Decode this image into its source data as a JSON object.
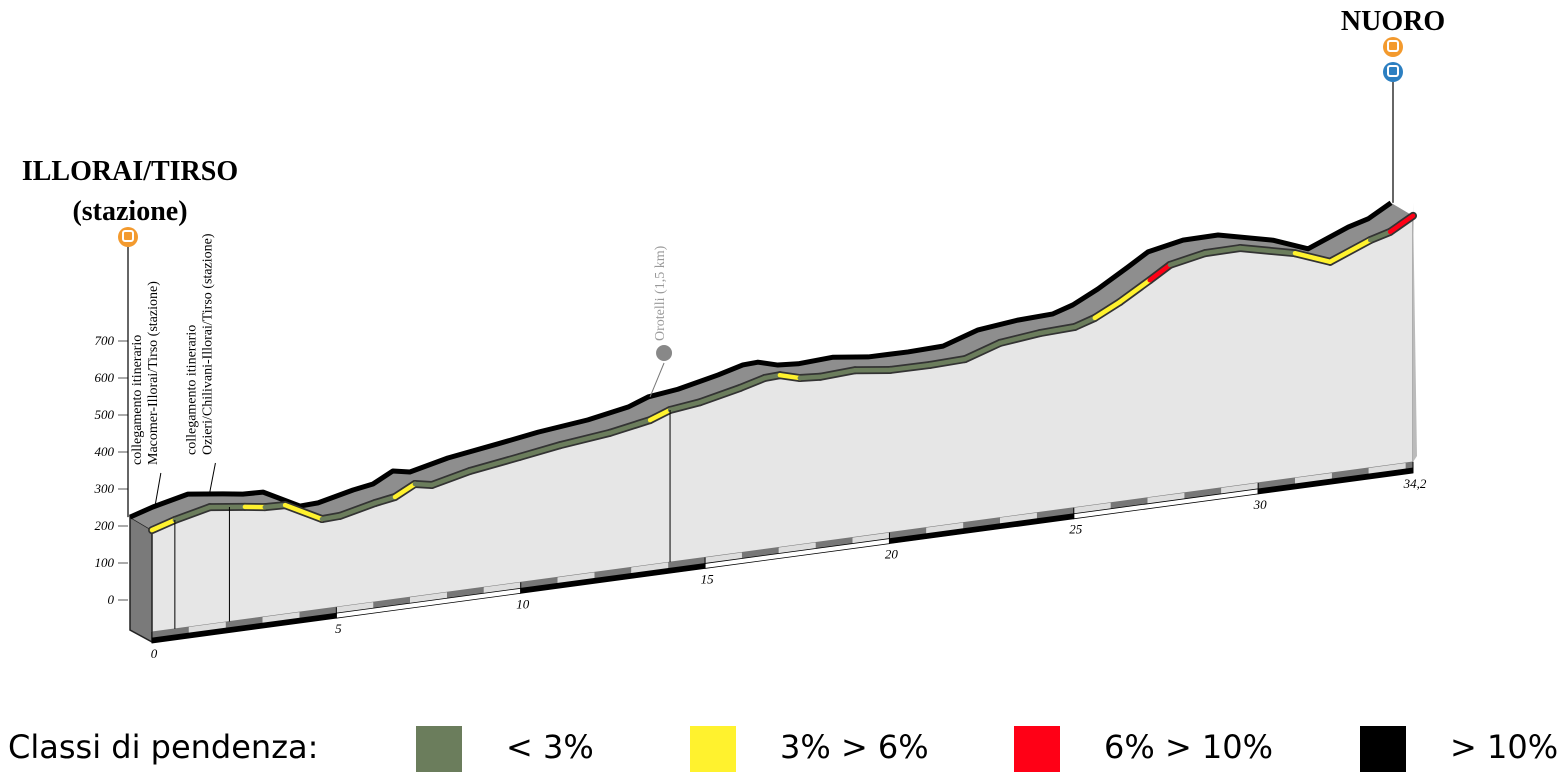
{
  "chart_data": {
    "type": "elevation-profile",
    "x": [
      0,
      0.62,
      1.57,
      2.52,
      3.06,
      3.61,
      4.61,
      5.1,
      6.05,
      6.59,
      7.13,
      7.59,
      8.62,
      9.98,
      11.07,
      12.42,
      13.51,
      14.05,
      14.86,
      15.95,
      16.62,
      17.03,
      17.57,
      18.12,
      19.07,
      20.02,
      21.1,
      22.05,
      23,
      24.08,
      25.03,
      25.57,
      26.25,
      27.06,
      27.61,
      28.56,
      29.51,
      31,
      31.95,
      33.04,
      33.58,
      34.2
    ],
    "values": [
      224,
      243,
      265,
      253,
      245,
      243,
      192,
      194,
      216,
      225,
      253,
      244,
      268,
      288,
      305,
      320,
      340,
      360,
      370,
      394,
      412,
      414,
      399,
      395,
      400,
      388,
      387,
      390,
      421,
      433,
      437,
      454,
      488,
      536,
      570,
      589,
      590,
      556,
      520,
      564,
      579,
      614
    ],
    "segment_class": [
      1,
      0,
      0,
      1,
      0,
      1,
      0,
      0,
      0,
      1,
      0,
      0,
      0,
      0,
      0,
      0,
      1,
      0,
      0,
      0,
      0,
      1,
      0,
      0,
      0,
      0,
      0,
      0,
      0,
      0,
      0,
      1,
      1,
      2,
      0,
      0,
      0,
      1,
      1,
      0,
      2
    ],
    "classes": [
      {
        "label": "< 3%",
        "color": "#6b7d5c"
      },
      {
        "label": "3% > 6%",
        "color": "#fff22e"
      },
      {
        "label": "6% > 10%",
        "color": "#ff0016"
      },
      {
        "label": "> 10%",
        "color": "#000000"
      }
    ],
    "legend_title": "Classi di pendenza:",
    "xlim": [
      0,
      34.2
    ],
    "xticks": [
      0,
      5,
      10,
      15,
      20,
      25,
      30,
      {
        "value": 34.2,
        "label": "34,2"
      }
    ],
    "ylim": [
      0,
      700
    ],
    "yticks": [
      0,
      100,
      200,
      300,
      400,
      500,
      600,
      700
    ],
    "annotations": [
      {
        "kind": "endpoint",
        "x": 0,
        "lines": [
          "ILLORAI/TIRSO",
          "(stazione)"
        ]
      },
      {
        "kind": "endpoint",
        "x": 34.2,
        "lines": [
          "NUORO"
        ]
      },
      {
        "kind": "link",
        "x": 0.62,
        "lines": [
          "collegamento itinerario",
          "Macomer-Illorai/Tirso (stazione)"
        ]
      },
      {
        "kind": "link",
        "x": 2.1,
        "lines": [
          "collegamento itinerario",
          "Ozieri/Chilivani-Illorai/Tirso (stazione)"
        ]
      },
      {
        "kind": "place",
        "x": 14.05,
        "lines": [
          "Orotelli (1,5 km)"
        ]
      }
    ]
  }
}
